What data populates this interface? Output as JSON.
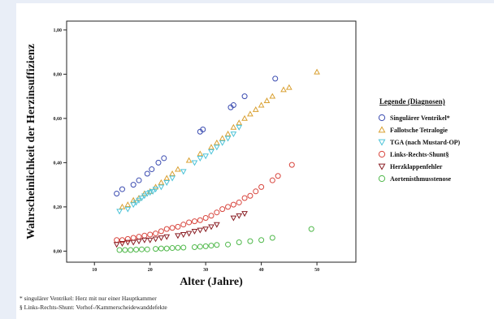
{
  "chart_data": {
    "type": "scatter",
    "title": "",
    "xlabel": "Alter (Jahre)",
    "ylabel": "Wahrscheinlichkeit der Herzinsuffizienz",
    "xlim": [
      5,
      57
    ],
    "ylim": [
      -0.05,
      1.04
    ],
    "x_ticks": [
      10,
      20,
      30,
      40,
      50
    ],
    "y_ticks": [
      0.0,
      0.2,
      0.4,
      0.6,
      0.8,
      1.0
    ],
    "x_tick_labels": [
      "10",
      "20",
      "30",
      "40",
      "50"
    ],
    "y_tick_labels": [
      "0,00",
      "0,20",
      "0,40",
      "0,60",
      "0,80",
      "1,00"
    ],
    "grid": false,
    "legend_position": "right",
    "legend_title": "Legende (Diagnosen)",
    "series": [
      {
        "name": "Singulärer Ventrikel*",
        "marker": "circle",
        "color": "#3a4bb0",
        "points": [
          [
            14,
            0.26
          ],
          [
            15,
            0.28
          ],
          [
            17,
            0.3
          ],
          [
            18,
            0.32
          ],
          [
            19.5,
            0.35
          ],
          [
            20.3,
            0.37
          ],
          [
            21.5,
            0.4
          ],
          [
            22.5,
            0.42
          ],
          [
            29,
            0.54
          ],
          [
            29.5,
            0.55
          ],
          [
            34.5,
            0.65
          ],
          [
            35,
            0.66
          ],
          [
            37,
            0.7
          ],
          [
            42.5,
            0.78
          ]
        ]
      },
      {
        "name": "Fallotsche Tetralogie",
        "marker": "triangle-up",
        "color": "#d9a031",
        "points": [
          [
            15,
            0.2
          ],
          [
            16,
            0.21
          ],
          [
            17,
            0.23
          ],
          [
            18,
            0.24
          ],
          [
            19,
            0.26
          ],
          [
            20,
            0.27
          ],
          [
            21,
            0.29
          ],
          [
            22,
            0.31
          ],
          [
            23,
            0.33
          ],
          [
            24,
            0.35
          ],
          [
            25,
            0.37
          ],
          [
            27,
            0.41
          ],
          [
            29,
            0.44
          ],
          [
            31,
            0.47
          ],
          [
            32,
            0.49
          ],
          [
            33,
            0.51
          ],
          [
            34,
            0.53
          ],
          [
            35,
            0.56
          ],
          [
            36,
            0.58
          ],
          [
            37,
            0.6
          ],
          [
            38,
            0.62
          ],
          [
            39,
            0.64
          ],
          [
            40,
            0.66
          ],
          [
            41,
            0.68
          ],
          [
            42,
            0.7
          ],
          [
            44,
            0.73
          ],
          [
            45,
            0.74
          ],
          [
            50,
            0.81
          ]
        ]
      },
      {
        "name": "TGA (nach Mustard-OP)",
        "marker": "triangle-down",
        "color": "#4cc3d8",
        "points": [
          [
            14.5,
            0.18
          ],
          [
            16,
            0.19
          ],
          [
            17,
            0.21
          ],
          [
            17.5,
            0.22
          ],
          [
            18,
            0.23
          ],
          [
            18.5,
            0.24
          ],
          [
            19,
            0.25
          ],
          [
            19.5,
            0.26
          ],
          [
            20,
            0.265
          ],
          [
            20.5,
            0.27
          ],
          [
            21,
            0.28
          ],
          [
            22,
            0.29
          ],
          [
            23,
            0.31
          ],
          [
            24,
            0.33
          ],
          [
            26,
            0.36
          ],
          [
            28,
            0.4
          ],
          [
            29,
            0.42
          ],
          [
            30,
            0.43
          ],
          [
            31,
            0.45
          ],
          [
            32,
            0.47
          ],
          [
            33,
            0.49
          ],
          [
            34,
            0.51
          ],
          [
            35,
            0.53
          ],
          [
            36,
            0.56
          ]
        ]
      },
      {
        "name": "Links-Rechts-Shunt§",
        "marker": "circle",
        "color": "#d8443c",
        "points": [
          [
            14,
            0.05
          ],
          [
            15,
            0.05
          ],
          [
            16,
            0.055
          ],
          [
            17,
            0.06
          ],
          [
            18,
            0.065
          ],
          [
            19,
            0.07
          ],
          [
            20,
            0.075
          ],
          [
            21,
            0.08
          ],
          [
            22,
            0.09
          ],
          [
            23,
            0.1
          ],
          [
            24,
            0.105
          ],
          [
            25,
            0.11
          ],
          [
            26,
            0.12
          ],
          [
            27,
            0.13
          ],
          [
            28,
            0.135
          ],
          [
            29,
            0.14
          ],
          [
            30,
            0.15
          ],
          [
            31,
            0.16
          ],
          [
            32,
            0.175
          ],
          [
            33,
            0.19
          ],
          [
            34,
            0.2
          ],
          [
            35,
            0.21
          ],
          [
            36,
            0.22
          ],
          [
            37,
            0.24
          ],
          [
            38,
            0.25
          ],
          [
            39,
            0.27
          ],
          [
            40,
            0.29
          ],
          [
            42,
            0.32
          ],
          [
            43,
            0.34
          ],
          [
            45.5,
            0.39
          ]
        ]
      },
      {
        "name": "Herzklappenfehler",
        "marker": "triangle-down",
        "color": "#8a1e24",
        "points": [
          [
            14,
            0.03
          ],
          [
            15,
            0.035
          ],
          [
            16,
            0.04
          ],
          [
            17,
            0.04
          ],
          [
            18,
            0.045
          ],
          [
            19,
            0.05
          ],
          [
            20,
            0.05
          ],
          [
            21,
            0.055
          ],
          [
            22,
            0.06
          ],
          [
            23,
            0.065
          ],
          [
            25,
            0.07
          ],
          [
            26,
            0.075
          ],
          [
            27,
            0.08
          ],
          [
            28,
            0.09
          ],
          [
            29,
            0.095
          ],
          [
            30,
            0.1
          ],
          [
            31,
            0.11
          ],
          [
            32,
            0.12
          ],
          [
            35,
            0.15
          ],
          [
            36,
            0.16
          ],
          [
            37,
            0.17
          ]
        ]
      },
      {
        "name": "Aortenisthmusstenose",
        "marker": "circle",
        "color": "#4fb84a",
        "points": [
          [
            14.5,
            0.005
          ],
          [
            15.5,
            0.005
          ],
          [
            16.5,
            0.005
          ],
          [
            17.5,
            0.007
          ],
          [
            18.5,
            0.008
          ],
          [
            19.5,
            0.008
          ],
          [
            21,
            0.01
          ],
          [
            22,
            0.012
          ],
          [
            23,
            0.012
          ],
          [
            24,
            0.014
          ],
          [
            25,
            0.015
          ],
          [
            26,
            0.016
          ],
          [
            28,
            0.018
          ],
          [
            29,
            0.02
          ],
          [
            30,
            0.022
          ],
          [
            31,
            0.025
          ],
          [
            32,
            0.028
          ],
          [
            34,
            0.03
          ],
          [
            36,
            0.04
          ],
          [
            38,
            0.045
          ],
          [
            40,
            0.05
          ],
          [
            42,
            0.06
          ],
          [
            49,
            0.1
          ]
        ]
      }
    ]
  },
  "footnotes": {
    "line1": "* singulärer Ventrikel: Herz mit nur einer Hauptkammer",
    "line2": "§ Links-Rechts-Shunt: Vorhof-/Kammerscheidewanddefekte"
  }
}
